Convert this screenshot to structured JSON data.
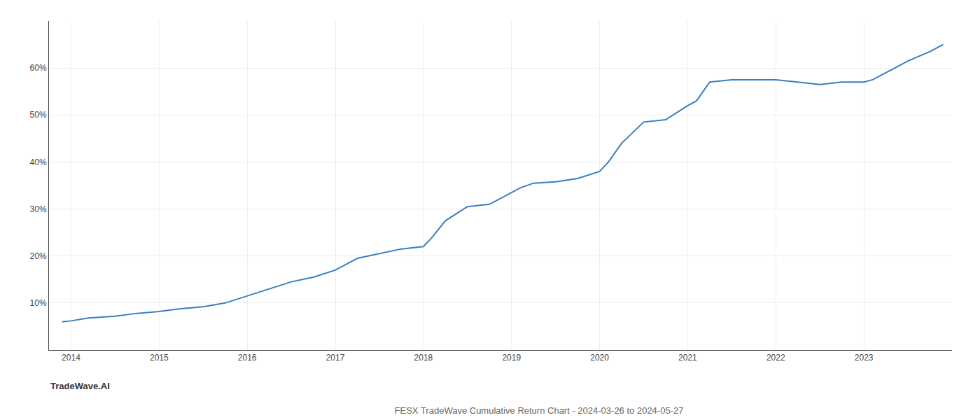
{
  "chart_data": {
    "type": "line",
    "title": "FESX TradeWave Cumulative Return Chart - 2024-03-26 to 2024-05-27",
    "annotations": [
      "TradeWave.AI"
    ],
    "color": "#3a7ebf",
    "x": [
      2013.9,
      2014.0,
      2014.2,
      2014.5,
      2014.75,
      2015.0,
      2015.25,
      2015.5,
      2015.75,
      2016.0,
      2016.25,
      2016.5,
      2016.75,
      2017.0,
      2017.25,
      2017.5,
      2017.75,
      2018.0,
      2018.1,
      2018.25,
      2018.5,
      2018.75,
      2019.0,
      2019.1,
      2019.25,
      2019.5,
      2019.75,
      2020.0,
      2020.1,
      2020.25,
      2020.5,
      2020.75,
      2021.0,
      2021.1,
      2021.25,
      2021.5,
      2021.75,
      2022.0,
      2022.25,
      2022.5,
      2022.75,
      2023.0,
      2023.1,
      2023.25,
      2023.5,
      2023.75,
      2023.9
    ],
    "values": [
      6.0,
      6.2,
      6.8,
      7.2,
      7.8,
      8.2,
      8.8,
      9.2,
      10.0,
      11.5,
      13.0,
      14.5,
      15.5,
      17.0,
      19.5,
      20.5,
      21.5,
      22.0,
      24.0,
      27.5,
      30.5,
      31.0,
      33.5,
      34.5,
      35.5,
      35.8,
      36.5,
      38.0,
      40.0,
      44.0,
      48.5,
      49.0,
      52.0,
      53.0,
      57.0,
      57.5,
      57.5,
      57.5,
      57.0,
      56.5,
      57.0,
      57.0,
      57.5,
      59.0,
      61.5,
      63.5,
      65.0
    ],
    "xlim": [
      2013.75,
      2024.0
    ],
    "xticks": [
      2014,
      2015,
      2016,
      2017,
      2018,
      2019,
      2020,
      2021,
      2022,
      2023
    ],
    "ylim": [
      0,
      70
    ],
    "yticks": [
      {
        "value": 10,
        "label": "10%"
      },
      {
        "value": 20,
        "label": "20%"
      },
      {
        "value": 30,
        "label": "30%"
      },
      {
        "value": 40,
        "label": "40%"
      },
      {
        "value": 50,
        "label": "50%"
      },
      {
        "value": 60,
        "label": "60%"
      }
    ],
    "grid": true
  }
}
